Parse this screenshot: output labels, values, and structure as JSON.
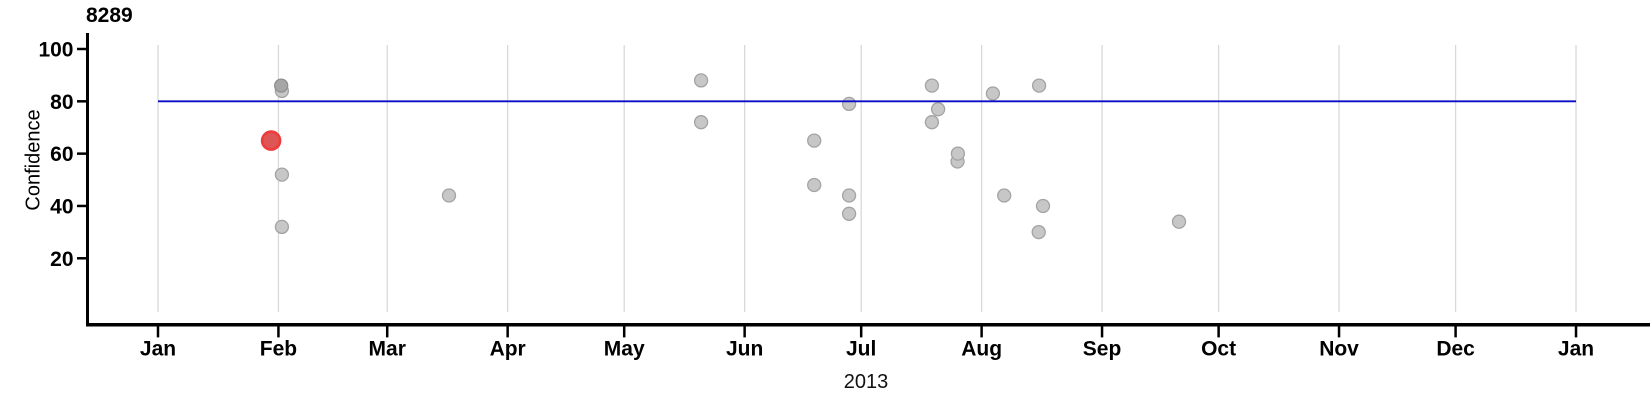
{
  "page": {
    "background": "#ffffff"
  },
  "chart_data": {
    "type": "scatter",
    "title": "8289",
    "xlabel": "2013",
    "ylabel": "Confidence",
    "x_axis": {
      "tick_labels": [
        "Jan",
        "Feb",
        "Mar",
        "Apr",
        "May",
        "Jun",
        "Jul",
        "Aug",
        "Sep",
        "Oct",
        "Nov",
        "Dec",
        "Jan"
      ],
      "month_start_days": [
        0,
        31,
        59,
        90,
        120,
        151,
        181,
        212,
        243,
        273,
        304,
        334,
        365
      ],
      "grid": true
    },
    "y_axis": {
      "ticks": [
        100,
        80,
        60,
        40,
        20
      ],
      "range": [
        -5,
        106
      ],
      "grid": false
    },
    "reference_line": {
      "value": 80,
      "color": "#0b0bc8",
      "span_days": [
        0,
        365
      ]
    },
    "points": [
      {
        "date": "Feb 1",
        "day": 31.9,
        "value": 84,
        "style": "gray"
      },
      {
        "date": "Feb 1",
        "day": 31.7,
        "value": 86,
        "style": "gray_dark"
      },
      {
        "date": "Jan 30",
        "day": 29.1,
        "value": 65,
        "style": "red"
      },
      {
        "date": "Feb 1",
        "day": 31.9,
        "value": 52,
        "style": "gray"
      },
      {
        "date": "Feb 1",
        "day": 31.9,
        "value": 32,
        "style": "gray"
      },
      {
        "date": "Mar 16",
        "day": 74.9,
        "value": 44,
        "style": "gray"
      },
      {
        "date": "May 20",
        "day": 139.8,
        "value": 88,
        "style": "gray"
      },
      {
        "date": "May 20",
        "day": 139.8,
        "value": 72,
        "style": "gray"
      },
      {
        "date": "Jun 18",
        "day": 168.9,
        "value": 65,
        "style": "gray"
      },
      {
        "date": "Jun 18",
        "day": 168.9,
        "value": 48,
        "style": "gray"
      },
      {
        "date": "Jun 27",
        "day": 177.9,
        "value": 79,
        "style": "gray"
      },
      {
        "date": "Jun 27",
        "day": 177.9,
        "value": 44,
        "style": "gray"
      },
      {
        "date": "Jun 27",
        "day": 177.9,
        "value": 37,
        "style": "gray"
      },
      {
        "date": "Jul 19",
        "day": 199.2,
        "value": 86,
        "style": "gray"
      },
      {
        "date": "Jul 20",
        "day": 200.8,
        "value": 77,
        "style": "gray"
      },
      {
        "date": "Jul 19",
        "day": 199.2,
        "value": 72,
        "style": "gray"
      },
      {
        "date": "Jul 25",
        "day": 205.8,
        "value": 57,
        "style": "gray"
      },
      {
        "date": "Jul 25",
        "day": 205.9,
        "value": 60,
        "style": "gray"
      },
      {
        "date": "Aug 3",
        "day": 214.9,
        "value": 83,
        "style": "gray"
      },
      {
        "date": "Aug 15",
        "day": 226.8,
        "value": 86,
        "style": "gray"
      },
      {
        "date": "Aug 6",
        "day": 217.8,
        "value": 44,
        "style": "gray"
      },
      {
        "date": "Aug 16",
        "day": 227.8,
        "value": 40,
        "style": "gray"
      },
      {
        "date": "Aug 15",
        "day": 226.7,
        "value": 30,
        "style": "gray"
      },
      {
        "date": "Sep 20",
        "day": 262.8,
        "value": 34,
        "style": "gray"
      }
    ],
    "point_styles": {
      "gray": {
        "fill": "#c7c7c7",
        "stroke": "#a3a3a3",
        "radius": 6.5,
        "stroke_width": 1.3
      },
      "gray_dark": {
        "fill": "#a6a6a6",
        "stroke": "#8f8f8f",
        "radius": 6.5,
        "stroke_width": 1.3
      },
      "red": {
        "fill": "#dd5555",
        "stroke": "#ef3b3b",
        "radius": 9,
        "stroke_width": 2.6
      }
    },
    "colors": {
      "grid": "#d9d9d9",
      "axis": "#000000",
      "tick_text": "#000000",
      "reference_line": "#0b0bc8"
    }
  }
}
